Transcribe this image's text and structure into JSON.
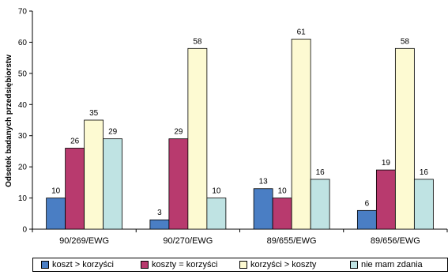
{
  "chart_data": {
    "type": "bar",
    "ylabel": "Odsetek badanych przedsiębiorstw",
    "xlabel": "",
    "ylim": [
      0,
      70
    ],
    "yticks": [
      0,
      10,
      20,
      30,
      40,
      50,
      60,
      70
    ],
    "grid": false,
    "legend_position": "bottom",
    "categories": [
      "90/269/EWG",
      "90/270/EWG",
      "89/655/EWG",
      "89/656/EWG"
    ],
    "series": [
      {
        "name": "koszt > korzyści",
        "color": "#4a7ec4",
        "values": [
          10,
          3,
          13,
          6
        ]
      },
      {
        "name": "koszty = korzyści",
        "color": "#b83a6e",
        "values": [
          26,
          29,
          10,
          19
        ]
      },
      {
        "name": "korzyści > koszty",
        "color": "#fdfad2",
        "values": [
          35,
          58,
          61,
          58
        ]
      },
      {
        "name": "nie mam zdania",
        "color": "#bfe3e3",
        "values": [
          29,
          10,
          16,
          16
        ]
      }
    ]
  }
}
